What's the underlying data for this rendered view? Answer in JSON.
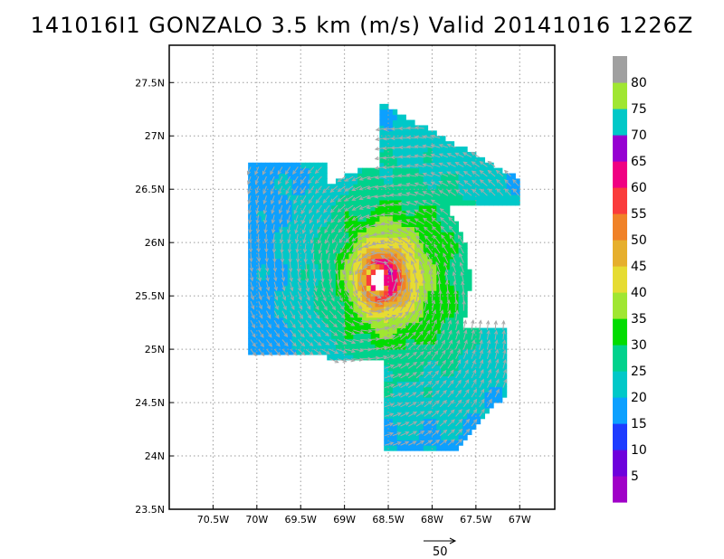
{
  "title": "141016I1 GONZALO 3.5 km (m/s) Valid 20141016 1226Z",
  "chart_data": {
    "type": "heatmap",
    "title": "141016I1 GONZALO 3.5 km (m/s) Valid 20141016 1226Z",
    "units": "m/s",
    "x_range": [
      -71.0,
      -66.6
    ],
    "y_range": [
      23.5,
      27.85
    ],
    "x_ticks": [
      {
        "value": -70.5,
        "label": "70.5W"
      },
      {
        "value": -70.0,
        "label": "70W"
      },
      {
        "value": -69.5,
        "label": "69.5W"
      },
      {
        "value": -69.0,
        "label": "69W"
      },
      {
        "value": -68.5,
        "label": "68.5W"
      },
      {
        "value": -68.0,
        "label": "68W"
      },
      {
        "value": -67.5,
        "label": "67.5W"
      },
      {
        "value": -67.0,
        "label": "67W"
      }
    ],
    "y_ticks": [
      {
        "value": 23.5,
        "label": "23.5N"
      },
      {
        "value": 24.0,
        "label": "24N"
      },
      {
        "value": 24.5,
        "label": "24.5N"
      },
      {
        "value": 25.0,
        "label": "25N"
      },
      {
        "value": 25.5,
        "label": "25.5N"
      },
      {
        "value": 26.0,
        "label": "26N"
      },
      {
        "value": 26.5,
        "label": "26.5N"
      },
      {
        "value": 27.0,
        "label": "27N"
      },
      {
        "value": 27.5,
        "label": "27.5N"
      }
    ],
    "grid": true,
    "storm_center": {
      "lon": -68.62,
      "lat": 25.65
    },
    "eye_radius_deg": 0.09,
    "colorbar": {
      "levels": [
        0,
        5,
        10,
        15,
        20,
        25,
        30,
        35,
        40,
        45,
        50,
        55,
        60,
        65,
        70,
        75,
        80,
        85
      ],
      "labels": [
        "5",
        "10",
        "15",
        "20",
        "25",
        "30",
        "35",
        "40",
        "45",
        "50",
        "55",
        "60",
        "65",
        "70",
        "75",
        "80"
      ],
      "colors": [
        "#a000c8",
        "#6e00dc",
        "#1e3cff",
        "#0ca0ff",
        "#00c8c8",
        "#00d28c",
        "#00dc00",
        "#a0e632",
        "#e6dc32",
        "#e6af2d",
        "#f08228",
        "#fa3c3c",
        "#f00082",
        "#9600d2",
        "#00c8c8",
        "#a0e632",
        "#a0a0a0"
      ]
    },
    "reference_vector": {
      "label": "50",
      "speed": 50
    },
    "colors": {
      "grid": "#9a9a9a",
      "vectors": "#a8a8a8",
      "frame": "#000000"
    }
  }
}
